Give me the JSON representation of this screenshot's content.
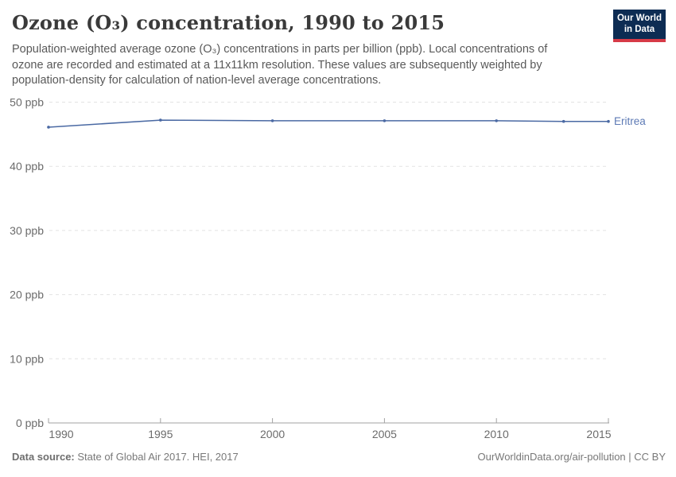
{
  "header": {
    "title": "Ozone (O₃) concentration, 1990 to 2015",
    "subtitle": "Population-weighted average ozone (O₃) concentrations in parts per billion (ppb). Local concentrations of ozone are recorded and estimated at a 11x11km resolution. These values are subsequently weighted by population-density for calculation of nation-level average concentrations.",
    "logo": {
      "line1": "Our World",
      "line2": "in Data",
      "bg_color": "#0d2c53",
      "bar_color": "#d73a47"
    }
  },
  "footer": {
    "source_label": "Data source:",
    "source_text": " State of Global Air 2017. HEI, 2017",
    "credit": "OurWorldinData.org/air-pollution | CC BY"
  },
  "chart_data": {
    "type": "line",
    "title": "Ozone (O₃) concentration, 1990 to 2015",
    "xlabel": "",
    "ylabel": "",
    "xlim": [
      1990,
      2015
    ],
    "ylim": [
      0,
      50
    ],
    "x_ticks": [
      1990,
      1995,
      2000,
      2005,
      2010,
      2015
    ],
    "y_ticks": [
      0,
      10,
      20,
      30,
      40,
      50
    ],
    "y_tick_suffix": " ppb",
    "grid": "horizontal-dashed",
    "legend_position": "end-of-line",
    "series": [
      {
        "name": "Eritrea",
        "color": "#4a69a3",
        "label_color": "#5d7ab5",
        "x": [
          1990,
          1995,
          2000,
          2005,
          2010,
          2013,
          2015
        ],
        "values": [
          46.1,
          47.2,
          47.1,
          47.1,
          47.1,
          47.0,
          47.0
        ]
      }
    ]
  },
  "colors": {
    "grid": "#e3e3e3",
    "axis": "#a1a1a1",
    "tick_text": "#6b6b6b"
  }
}
